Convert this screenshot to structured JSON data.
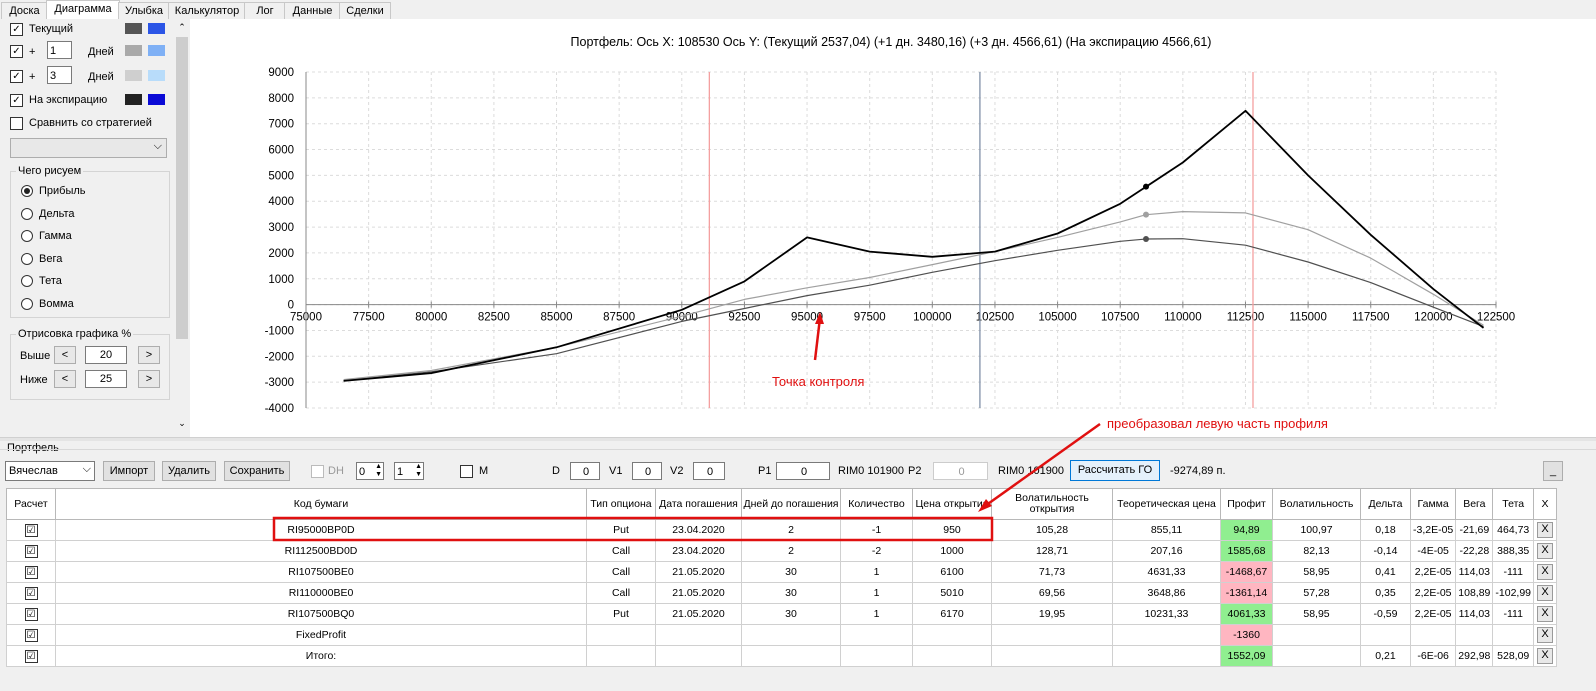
{
  "tabs": [
    "Доска",
    "Диаграмма",
    "Улыбка",
    "Калькулятор",
    "Лог",
    "Данные",
    "Сделки"
  ],
  "active_tab": "Диаграмма",
  "left_panel": {
    "current_label": "Текущий",
    "plus1": {
      "sign": "+",
      "value": "1",
      "unit": "Дней"
    },
    "plus3": {
      "sign": "+",
      "value": "3",
      "unit": "Дней"
    },
    "expiry_label": "На экспирацию",
    "compare_label": "Сравнить со стратегией",
    "draw_group_title": "Чего рисуем",
    "draw_options": [
      "Прибыль",
      "Дельта",
      "Гамма",
      "Вега",
      "Тета",
      "Вомма"
    ],
    "selected_option": "Прибыль",
    "render_group_title": "Отрисовка графика %",
    "above_label": "Выше",
    "above_value": "20",
    "below_label": "Ниже",
    "below_value": "25",
    "swatch_colors": [
      "#555555",
      "#2b55e6",
      "#a9a9a9",
      "#7fb0f5",
      "#cfcfcf",
      "#b8dcfa",
      "#222222",
      "#0a0ad6"
    ]
  },
  "chart_data": {
    "type": "line",
    "title": "Портфель: Ось X:  108530 Ось Y:  (Текущий 2537,04)  (+1 дн. 3480,16)  (+3 дн. 4566,61)  (На экспирацию 4566,61)",
    "xlim": [
      75000,
      122500
    ],
    "ylim": [
      -4000,
      9000
    ],
    "xticks": [
      "75000",
      "77500",
      "80000",
      "82500",
      "85000",
      "87500",
      "90000",
      "92500",
      "95000",
      "97500",
      "100000",
      "102500",
      "105000",
      "107500",
      "110000",
      "112500",
      "115000",
      "117500",
      "120000",
      "122500"
    ],
    "yticks": [
      "9000",
      "8000",
      "7000",
      "6000",
      "5000",
      "4000",
      "3000",
      "2000",
      "1000",
      "0",
      "-1000",
      "-2000",
      "-3000",
      "-4000"
    ],
    "vlines": [
      {
        "x": 91100,
        "color": "#f4a0a0"
      },
      {
        "x": 101900,
        "color": "#8090a8"
      },
      {
        "x": 112800,
        "color": "#f4a0a0"
      }
    ],
    "series": [
      {
        "color": "#000000",
        "width": 1.8,
        "points": [
          [
            76500,
            -2950
          ],
          [
            80000,
            -2650
          ],
          [
            85000,
            -1650
          ],
          [
            90000,
            -200
          ],
          [
            92500,
            900
          ],
          [
            95000,
            2600
          ],
          [
            97500,
            2050
          ],
          [
            100000,
            1850
          ],
          [
            102500,
            2050
          ],
          [
            105000,
            2750
          ],
          [
            107500,
            3900
          ],
          [
            110000,
            5500
          ],
          [
            112500,
            7500
          ],
          [
            115000,
            5000
          ],
          [
            117500,
            2700
          ],
          [
            120000,
            600
          ],
          [
            121200,
            -300
          ],
          [
            122000,
            -900
          ]
        ]
      },
      {
        "color": "#a0a0a0",
        "width": 1.2,
        "points": [
          [
            76500,
            -2900
          ],
          [
            80000,
            -2550
          ],
          [
            85000,
            -1650
          ],
          [
            90000,
            -450
          ],
          [
            92500,
            200
          ],
          [
            95000,
            650
          ],
          [
            97500,
            1050
          ],
          [
            100000,
            1550
          ],
          [
            102500,
            2050
          ],
          [
            105000,
            2600
          ],
          [
            107500,
            3200
          ],
          [
            108530,
            3480
          ],
          [
            110000,
            3600
          ],
          [
            112500,
            3550
          ],
          [
            115000,
            2900
          ],
          [
            117500,
            1800
          ],
          [
            120000,
            400
          ],
          [
            122000,
            -800
          ]
        ]
      },
      {
        "color": "#505050",
        "width": 1.2,
        "points": [
          [
            76500,
            -2950
          ],
          [
            80000,
            -2600
          ],
          [
            85000,
            -1900
          ],
          [
            90000,
            -650
          ],
          [
            92500,
            -150
          ],
          [
            95000,
            350
          ],
          [
            97500,
            750
          ],
          [
            100000,
            1250
          ],
          [
            102500,
            1700
          ],
          [
            105000,
            2100
          ],
          [
            107500,
            2450
          ],
          [
            108530,
            2537
          ],
          [
            110000,
            2550
          ],
          [
            112500,
            2300
          ],
          [
            115000,
            1650
          ],
          [
            117500,
            850
          ],
          [
            120000,
            -100
          ],
          [
            122000,
            -850
          ]
        ]
      }
    ],
    "markers": [
      {
        "x": 108530,
        "y": 4566,
        "color": "#000000"
      },
      {
        "x": 108530,
        "y": 3480,
        "color": "#a0a0a0"
      },
      {
        "x": 108530,
        "y": 2537,
        "color": "#505050"
      }
    ],
    "annotations": [
      "Точка контроля",
      "преобразовал левую часть профиля"
    ]
  },
  "toolbar": {
    "portfolio_group": "Портфель",
    "account": "Вячеслав",
    "import_label": "Импорт",
    "delete_label": "Удалить",
    "save_label": "Сохранить",
    "dh_label": "DH",
    "dh_val1": "0",
    "dh_val2": "1",
    "m_label": "M",
    "d_label": "D",
    "d_value": "0",
    "v1_label": "V1",
    "v1_value": "0",
    "v2_label": "V2",
    "v2_value": "0",
    "p1_label": "P1",
    "p1_value": "0",
    "rim1": "RIM0 101900",
    "p2_label": "P2",
    "p2_value": "0",
    "rim2": "RIM0 101900",
    "calc_go_label": "Рассчитать ГО",
    "go_value": "-9274,89 п.",
    "minimize_label": "_"
  },
  "table": {
    "headers": [
      "Расчет",
      "Код бумаги",
      "Тип опциона",
      "Дата погашения",
      "Дней до погашения",
      "Количество",
      "Цена открытия",
      "Волатильность открытия",
      "Теоретическая цена",
      "Профит",
      "Волатильность",
      "Дельта",
      "Гамма",
      "Вега",
      "Тета",
      "X"
    ],
    "rows": [
      {
        "check": "☑",
        "code": "RI95000BP0D",
        "type": "Put",
        "date": "23.04.2020",
        "days": "2",
        "qty": "-1",
        "price": "950",
        "vol_open": "105,28",
        "theo": "855,11",
        "profit": "94,89",
        "pcolor": "green",
        "vol": "100,97",
        "delta": "0,18",
        "gamma": "-3,2E-05",
        "vega": "-21,69",
        "theta": "464,73",
        "x": "X"
      },
      {
        "check": "☑",
        "code": "RI112500BD0D",
        "type": "Call",
        "date": "23.04.2020",
        "days": "2",
        "qty": "-2",
        "price": "1000",
        "vol_open": "128,71",
        "theo": "207,16",
        "profit": "1585,68",
        "pcolor": "green",
        "vol": "82,13",
        "delta": "-0,14",
        "gamma": "-4E-05",
        "vega": "-22,28",
        "theta": "388,35",
        "x": "X"
      },
      {
        "check": "☑",
        "code": "RI107500BE0",
        "type": "Call",
        "date": "21.05.2020",
        "days": "30",
        "qty": "1",
        "price": "6100",
        "vol_open": "71,73",
        "theo": "4631,33",
        "profit": "-1468,67",
        "pcolor": "pink",
        "vol": "58,95",
        "delta": "0,41",
        "gamma": "2,2E-05",
        "vega": "114,03",
        "theta": "-111",
        "x": "X"
      },
      {
        "check": "☑",
        "code": "RI110000BE0",
        "type": "Call",
        "date": "21.05.2020",
        "days": "30",
        "qty": "1",
        "price": "5010",
        "vol_open": "69,56",
        "theo": "3648,86",
        "profit": "-1361,14",
        "pcolor": "pink",
        "vol": "57,28",
        "delta": "0,35",
        "gamma": "2,2E-05",
        "vega": "108,89",
        "theta": "-102,99",
        "x": "X"
      },
      {
        "check": "☑",
        "code": "RI107500BQ0",
        "type": "Put",
        "date": "21.05.2020",
        "days": "30",
        "qty": "1",
        "price": "6170",
        "vol_open": "19,95",
        "theo": "10231,33",
        "profit": "4061,33",
        "pcolor": "green",
        "vol": "58,95",
        "delta": "-0,59",
        "gamma": "2,2E-05",
        "vega": "114,03",
        "theta": "-111",
        "x": "X"
      },
      {
        "check": "☑",
        "code": "FixedProfit",
        "type": "",
        "date": "",
        "days": "",
        "qty": "",
        "price": "",
        "vol_open": "",
        "theo": "",
        "profit": "-1360",
        "pcolor": "pink",
        "vol": "",
        "delta": "",
        "gamma": "",
        "vega": "",
        "theta": "",
        "x": "X"
      },
      {
        "check": "☑",
        "code": "Итого:",
        "type": "",
        "date": "",
        "days": "",
        "qty": "",
        "price": "",
        "vol_open": "",
        "theo": "",
        "profit": "1552,09",
        "pcolor": "green",
        "vol": "",
        "delta": "0,21",
        "gamma": "-6E-06",
        "vega": "292,98",
        "theta": "528,09",
        "x": "X"
      }
    ]
  }
}
